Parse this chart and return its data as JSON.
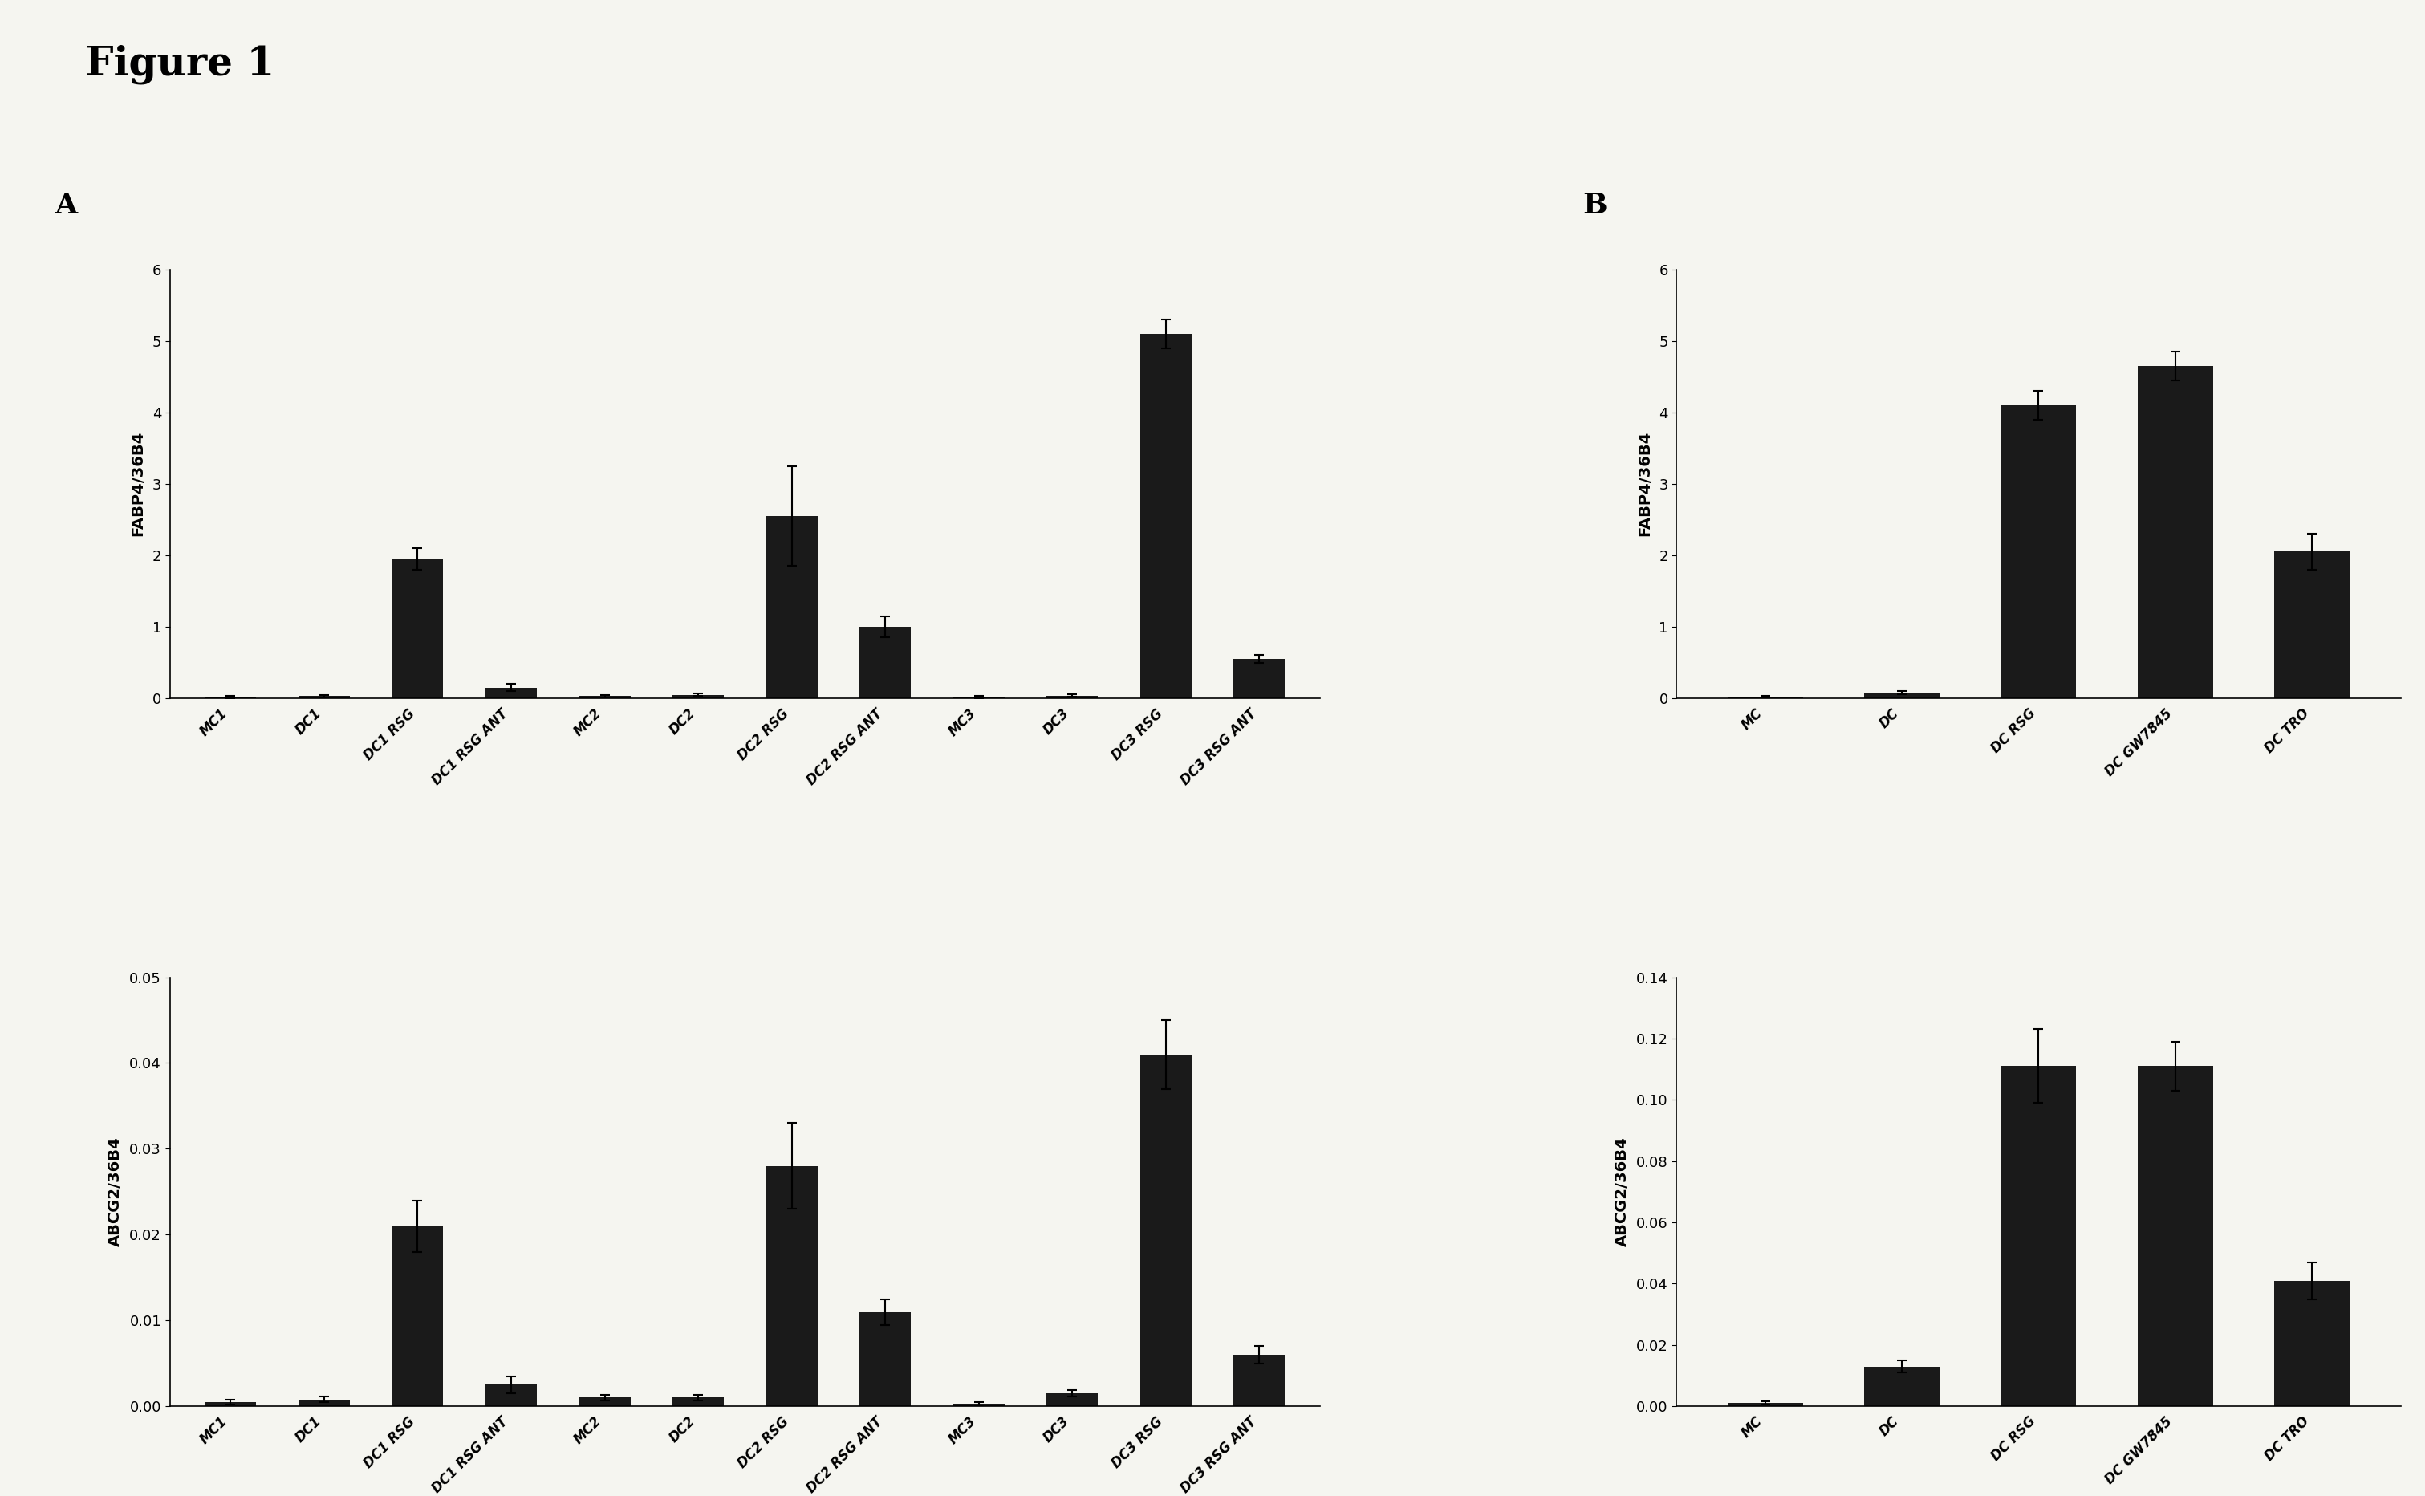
{
  "figure_title": "Figure 1",
  "panel_A_top": {
    "categories": [
      "MC1",
      "DC1",
      "DC1 RSG",
      "DC1 RSG ANT",
      "MC2",
      "DC2",
      "DC2 RSG",
      "DC2 RSG ANT",
      "MC3",
      "DC3",
      "DC3 RSG",
      "DC3 RSG ANT"
    ],
    "values": [
      0.02,
      0.03,
      1.95,
      0.15,
      0.03,
      0.05,
      2.55,
      1.0,
      0.02,
      0.04,
      5.1,
      0.55
    ],
    "errors": [
      0.02,
      0.02,
      0.15,
      0.05,
      0.02,
      0.02,
      0.7,
      0.15,
      0.02,
      0.02,
      0.2,
      0.06
    ],
    "ylabel": "FABP4/36B4",
    "ylim": [
      0,
      6
    ],
    "yticks": [
      0,
      1,
      2,
      3,
      4,
      5,
      6
    ],
    "yticklabels": [
      "0",
      "1",
      "2",
      "3",
      "4",
      "5",
      "6"
    ]
  },
  "panel_A_bottom": {
    "categories": [
      "MC1",
      "DC1",
      "DC1 RSG",
      "DC1 RSG ANT",
      "MC2",
      "DC2",
      "DC2 RSG",
      "DC2 RSG ANT",
      "MC3",
      "DC3",
      "DC3 RSG",
      "DC3 RSG ANT"
    ],
    "values": [
      0.0005,
      0.0008,
      0.021,
      0.0025,
      0.001,
      0.001,
      0.028,
      0.011,
      0.0003,
      0.0015,
      0.041,
      0.006
    ],
    "errors": [
      0.0003,
      0.0003,
      0.003,
      0.001,
      0.0003,
      0.0003,
      0.005,
      0.0015,
      0.0002,
      0.0004,
      0.004,
      0.001
    ],
    "ylabel": "ABCG2/36B4",
    "ylim": [
      0,
      0.05
    ],
    "yticks": [
      0.0,
      0.01,
      0.02,
      0.03,
      0.04,
      0.05
    ],
    "yticklabels": [
      "0.00",
      "0.01",
      "0.02",
      "0.03",
      "0.04",
      "0.05"
    ]
  },
  "panel_B_top": {
    "categories": [
      "MC",
      "DC",
      "DC RSG",
      "DC GW7845",
      "DC TRO"
    ],
    "values": [
      0.02,
      0.08,
      4.1,
      4.65,
      2.05
    ],
    "errors": [
      0.01,
      0.02,
      0.2,
      0.2,
      0.25
    ],
    "ylabel": "FABP4/36B4",
    "ylim": [
      0,
      6
    ],
    "yticks": [
      0,
      1,
      2,
      3,
      4,
      5,
      6
    ],
    "yticklabels": [
      "0",
      "1",
      "2",
      "3",
      "4",
      "5",
      "6"
    ]
  },
  "panel_B_bottom": {
    "categories": [
      "MC",
      "DC",
      "DC RSG",
      "DC GW7845",
      "DC TRO"
    ],
    "values": [
      0.001,
      0.013,
      0.111,
      0.111,
      0.041
    ],
    "errors": [
      0.0005,
      0.002,
      0.012,
      0.008,
      0.006
    ],
    "ylabel": "ABCG2/36B4",
    "ylim": [
      0,
      0.14
    ],
    "yticks": [
      0.0,
      0.02,
      0.04,
      0.06,
      0.08,
      0.1,
      0.12,
      0.14
    ],
    "yticklabels": [
      "0.00",
      "0.02",
      "0.04",
      "0.06",
      "0.08",
      "0.10",
      "0.12",
      "0.14"
    ]
  },
  "bar_color": "#1a1a1a",
  "background_color": "#f5f5f0",
  "bar_width": 0.55,
  "figure_title_fontsize": 36,
  "panel_label_fontsize": 26,
  "axis_label_fontsize": 14,
  "tick_label_fontsize": 12,
  "ytick_fontsize": 13
}
